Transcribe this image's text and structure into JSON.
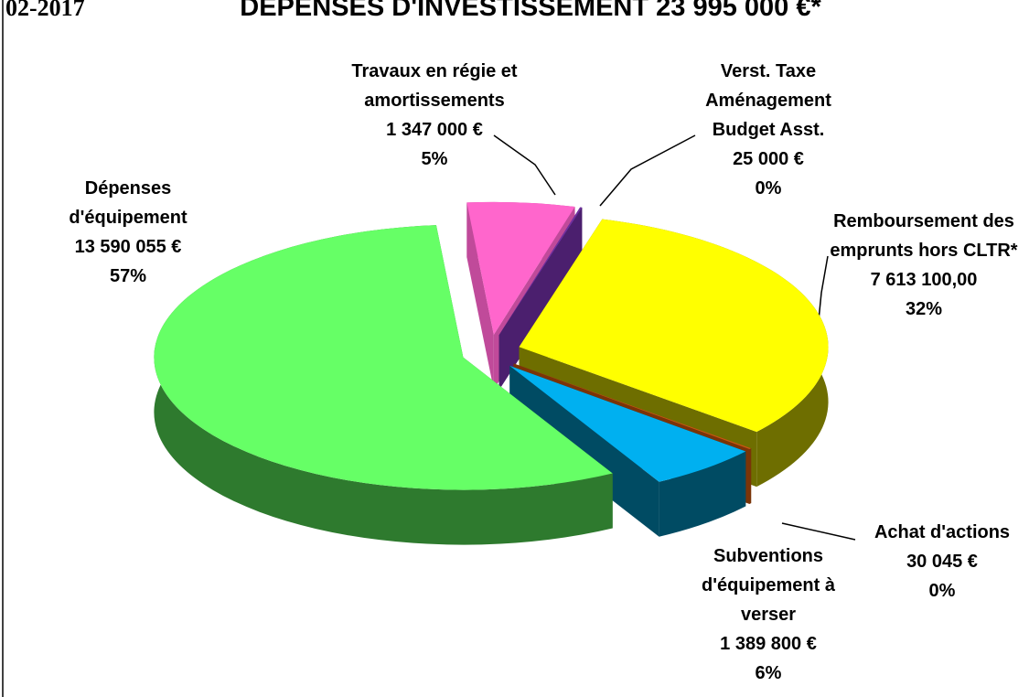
{
  "chart_data": {
    "type": "pie",
    "title": "DÉPENSES D'INVESTISSEMENT  23 995 000 €*",
    "header_note": "02-2017",
    "categories": [
      "Travaux en régie et amortissements",
      "Verst. Taxe Aménagement Budget Asst.",
      "Remboursement des emprunts hors CLTR*",
      "Achat d'actions",
      "Subventions d'équipement à verser",
      "Dépenses d'équipement"
    ],
    "values": [
      1347000,
      25000,
      7613100,
      30045,
      1389800,
      13590055
    ],
    "value_labels": [
      "1 347 000 €",
      "25 000 €",
      "7 613 100,00",
      "30 045 €",
      "1 389 800 €",
      "13 590 055 €"
    ],
    "percents": [
      5,
      0,
      32,
      0,
      6,
      57
    ],
    "percent_labels": [
      "5%",
      "0%",
      "32%",
      "0%",
      "6%",
      "57%"
    ],
    "colors": [
      "#ff66cc",
      "#7030a0",
      "#ffff00",
      "#c55a11",
      "#00b0f0",
      "#66ff66"
    ],
    "side_colors": [
      "#c04a9a",
      "#4b1f6e",
      "#6e6e00",
      "#7a3408",
      "#004b63",
      "#2e7a2e"
    ]
  }
}
